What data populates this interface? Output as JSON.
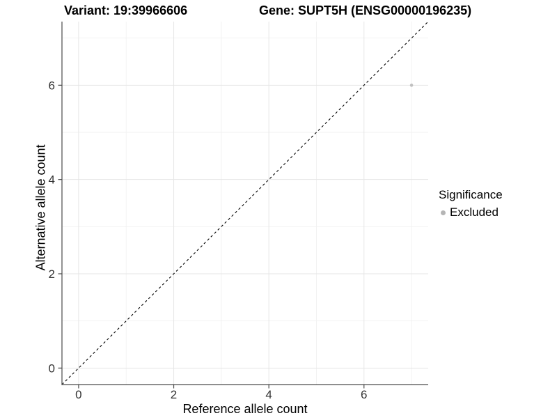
{
  "header": {
    "variant_title": "Variant: 19:39966606",
    "gene_title": "Gene: SUPT5H (ENSG00000196235)"
  },
  "legend": {
    "title": "Significance",
    "items": [
      {
        "label": "Excluded",
        "key_color": "#b5b5b5",
        "shape": "circle"
      }
    ]
  },
  "chart_data": {
    "type": "scatter",
    "title": "Variant: 19:39966606    Gene: SUPT5H (ENSG00000196235)",
    "xlabel": "Reference allele count",
    "ylabel": "Alternative allele count",
    "xlim": [
      -0.35,
      7.35
    ],
    "ylim": [
      -0.35,
      7.35
    ],
    "xticks": [
      0,
      2,
      4,
      6
    ],
    "yticks": [
      0,
      2,
      4,
      6
    ],
    "xticks_minor": [
      1,
      3,
      5,
      7
    ],
    "yticks_minor": [
      1,
      3,
      5,
      7
    ],
    "grid": "major_and_minor",
    "legend_position": "right",
    "points": [
      {
        "x": 7,
        "y": 6,
        "series": "Excluded",
        "color": "#c0c0c0",
        "size": 2.3
      }
    ],
    "reference_line": {
      "kind": "identity_y_equals_x",
      "style": "dashed",
      "color": "#000000"
    },
    "colors": {
      "background": "#ffffff",
      "grid_major": "#e6e6e6",
      "grid_minor": "#f2f2f2",
      "axis_line": "#4a4a4a",
      "tick_label": "#333333",
      "title": "#000000"
    }
  }
}
